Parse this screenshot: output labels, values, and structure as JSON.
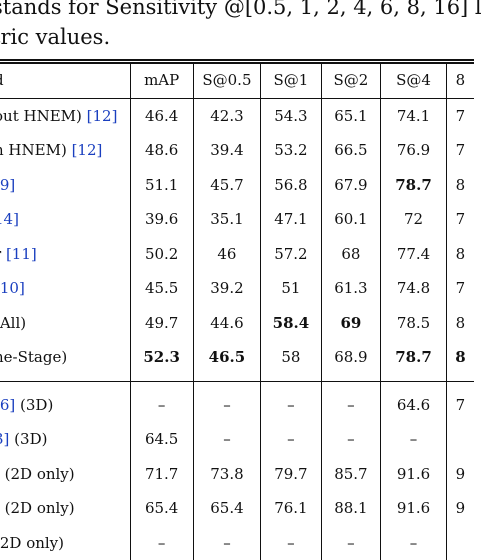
{
  "caption": {
    "line1": "stands for Sensitivity @[0.5, 1, 2, 4, 6, 8, 16] l",
    "line2": "tric values."
  },
  "table": {
    "headers": [
      "d",
      "mAP",
      "S@0.5",
      "S@1",
      "S@2",
      "S@4",
      "8"
    ],
    "group1": [
      {
        "method": "out HNEM)",
        "ref": "[12]",
        "cells": [
          "46.4",
          "42.3",
          "54.3",
          "65.1",
          "74.1",
          "7"
        ],
        "bold": []
      },
      {
        "method": "h HNEM)",
        "ref": "[12]",
        "cells": [
          "48.6",
          "39.4",
          "53.2",
          "66.5",
          "76.9",
          "7"
        ],
        "bold": []
      },
      {
        "method": "",
        "ref": "[9]",
        "cells": [
          "51.1",
          "45.7",
          "56.8",
          "67.9",
          "78.7",
          "8"
        ],
        "bold": [
          4
        ]
      },
      {
        "method": "",
        "ref": "14]",
        "cells": [
          "39.6",
          "35.1",
          "47.1",
          "60.1",
          "72",
          "7"
        ],
        "bold": []
      },
      {
        "method": "r",
        "ref": "[11]",
        "cells": [
          "50.2",
          "46",
          "57.2",
          "68",
          "77.4",
          "8"
        ],
        "bold": []
      },
      {
        "method": "",
        "ref": "[10]",
        "cells": [
          "45.5",
          "39.2",
          "51",
          "61.3",
          "74.8",
          "7"
        ],
        "bold": []
      },
      {
        "method": "(All)",
        "ref": "",
        "cells": [
          "49.7",
          "44.6",
          "58.4",
          "69",
          "78.5",
          "8"
        ],
        "bold": [
          2,
          3
        ]
      },
      {
        "method": "ne-Stage)",
        "ref": "",
        "cells": [
          "52.3",
          "46.5",
          "58",
          "68.9",
          "78.7",
          "8"
        ],
        "bold": [
          0,
          1,
          4,
          5
        ]
      }
    ],
    "group2": [
      {
        "method": "(3D)",
        "ref": "[6]",
        "cells": [
          "–",
          "–",
          "–",
          "–",
          "64.6",
          "7"
        ],
        "bold": []
      },
      {
        "method": "(3D)",
        "ref": "3]",
        "cells": [
          "64.5",
          "–",
          "–",
          "–",
          "–",
          ""
        ],
        "bold": []
      },
      {
        "method": "(2D only)",
        "ref": "]",
        "cells": [
          "71.7",
          "73.8",
          "79.7",
          "85.7",
          "91.6",
          "9"
        ],
        "bold": []
      },
      {
        "method": "(2D only)",
        "ref": "]",
        "cells": [
          "65.4",
          "65.4",
          "76.1",
          "88.1",
          "91.6",
          "9"
        ],
        "bold": []
      },
      {
        "method": "(2D only)",
        "ref": "",
        "cells": [
          "–",
          "–",
          "–",
          "–",
          "–",
          ""
        ],
        "bold": []
      }
    ]
  }
}
